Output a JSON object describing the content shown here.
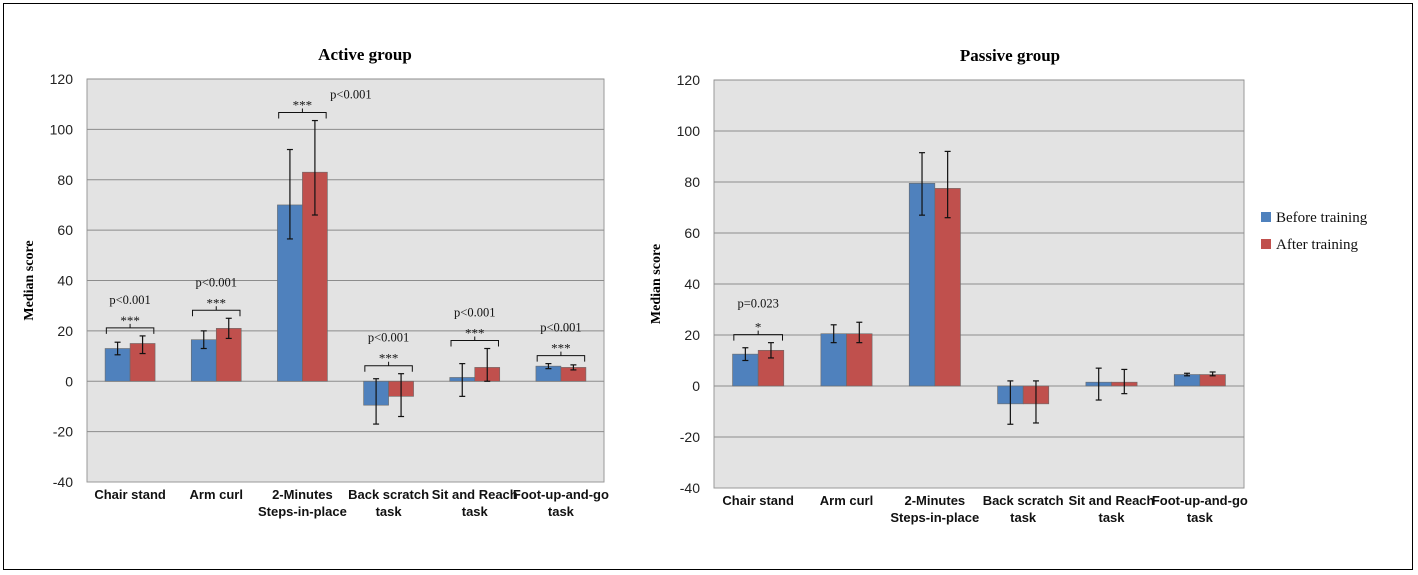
{
  "colors": {
    "before": "#4f81bd",
    "after": "#c0504d",
    "plot_bg": "#e3e3e3",
    "grid": "#8c8c8c"
  },
  "legend": {
    "before": "Before training",
    "after": "After training"
  },
  "chart_data": [
    {
      "type": "bar",
      "title": "Active group",
      "ylabel": "Median score",
      "ylim": [
        -40,
        120
      ],
      "yticks": [
        -40,
        -20,
        0,
        20,
        40,
        60,
        80,
        100,
        120
      ],
      "grid": true,
      "categories": [
        [
          "Chair stand"
        ],
        [
          "Arm curl"
        ],
        [
          "2-Minutes",
          "Steps-in-place"
        ],
        [
          "Back scratch",
          "task"
        ],
        [
          "Sit and Reach",
          "task"
        ],
        [
          "Foot-up-and-go",
          "task"
        ]
      ],
      "series": [
        {
          "name": "Before training",
          "values": [
            13,
            16.5,
            70,
            -9.5,
            1.5,
            6
          ],
          "err_low": [
            10.5,
            13,
            56.5,
            -17,
            -6,
            5
          ],
          "err_high": [
            15.5,
            20,
            92,
            1,
            7,
            7
          ]
        },
        {
          "name": "After training",
          "values": [
            15,
            21,
            83,
            -6,
            5.5,
            5.5
          ],
          "err_low": [
            11,
            17,
            66,
            -14,
            0,
            4.5
          ],
          "err_high": [
            18,
            25,
            103.5,
            3,
            13,
            6.5
          ]
        }
      ],
      "annotations": [
        {
          "category": 0,
          "p": "p<0.001",
          "stars": "***"
        },
        {
          "category": 1,
          "p": "p<0.001",
          "stars": "***"
        },
        {
          "category": 2,
          "p": "p<0.001",
          "stars": "***"
        },
        {
          "category": 3,
          "p": "p<0.001",
          "stars": "***"
        },
        {
          "category": 4,
          "p": "p<0.001",
          "stars": "***"
        },
        {
          "category": 5,
          "p": "p<0.001",
          "stars": "***"
        }
      ]
    },
    {
      "type": "bar",
      "title": "Passive  group",
      "ylabel": "Median score",
      "ylim": [
        -40,
        120
      ],
      "yticks": [
        -40,
        -20,
        0,
        20,
        40,
        60,
        80,
        100,
        120
      ],
      "grid": true,
      "legend_position": "right",
      "categories": [
        [
          "Chair stand"
        ],
        [
          "Arm curl"
        ],
        [
          "2-Minutes",
          "Steps-in-place"
        ],
        [
          "Back scratch",
          "task"
        ],
        [
          "Sit and Reach",
          "task"
        ],
        [
          "Foot-up-and-go",
          "task"
        ]
      ],
      "series": [
        {
          "name": "Before training",
          "values": [
            12.5,
            20.5,
            79.5,
            -7,
            1.5,
            4.5
          ],
          "err_low": [
            10,
            17,
            67,
            -15,
            -5.5,
            4
          ],
          "err_high": [
            15,
            24,
            91.5,
            2,
            7,
            5
          ]
        },
        {
          "name": "After training",
          "values": [
            14,
            20.5,
            77.5,
            -7,
            1.5,
            4.5
          ],
          "err_low": [
            11,
            17,
            66,
            -14.5,
            -3,
            4
          ],
          "err_high": [
            17,
            25,
            92,
            2,
            6.5,
            5.5
          ]
        }
      ],
      "annotations": [
        {
          "category": 0,
          "p": "p=0.023",
          "stars": "*"
        }
      ]
    }
  ]
}
